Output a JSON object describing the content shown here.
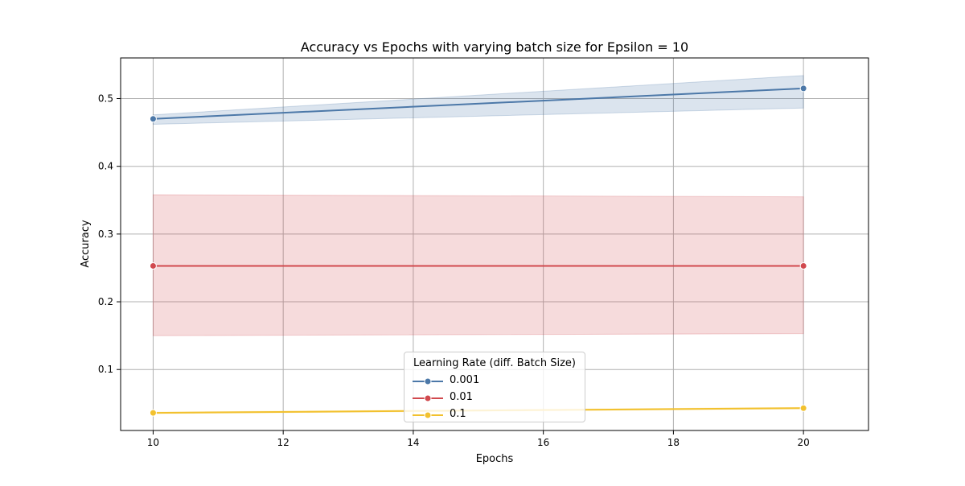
{
  "chart_data": {
    "type": "line",
    "title": "Accuracy vs Epochs with varying batch size for Epsilon = 10",
    "xlabel": "Epochs",
    "ylabel": "Accuracy",
    "xlim": [
      9.5,
      21.0
    ],
    "ylim": [
      0.01,
      0.56
    ],
    "xticks": [
      10,
      12,
      14,
      16,
      18,
      20
    ],
    "yticks": [
      0.1,
      0.2,
      0.3,
      0.4,
      0.5
    ],
    "grid": true,
    "legend": {
      "title": "Learning Rate (diff. Batch Size)",
      "placement": "lower-center"
    },
    "series": [
      {
        "name": "0.001",
        "color": "#4c78a8",
        "x": [
          10,
          20
        ],
        "y": [
          0.47,
          0.515
        ],
        "ci_low": [
          0.462,
          0.486
        ],
        "ci_high": [
          0.476,
          0.534
        ]
      },
      {
        "name": "0.01",
        "color": "#d1494e",
        "x": [
          10,
          20
        ],
        "y": [
          0.253,
          0.253
        ],
        "ci_low": [
          0.15,
          0.153
        ],
        "ci_high": [
          0.358,
          0.355
        ]
      },
      {
        "name": "0.1",
        "color": "#f2c12e",
        "x": [
          10,
          20
        ],
        "y": [
          0.036,
          0.043
        ],
        "ci_low": [
          0.035,
          0.042
        ],
        "ci_high": [
          0.037,
          0.044
        ]
      }
    ]
  }
}
